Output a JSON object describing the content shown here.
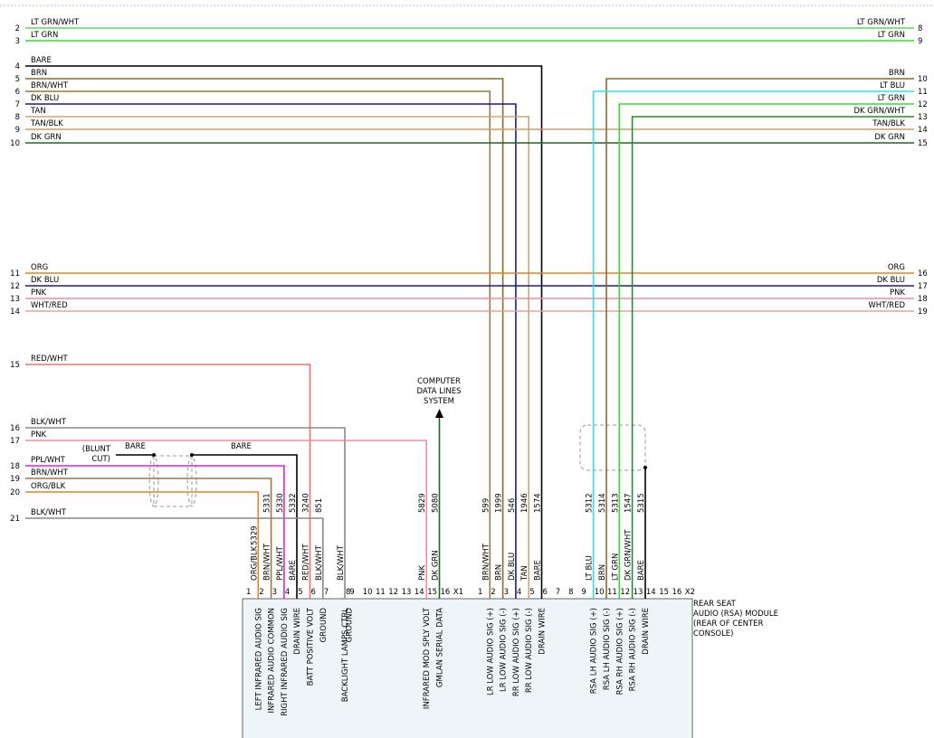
{
  "left_pins": [
    {
      "pin": "2",
      "color": "LT GRN/WHT",
      "stroke": "#66d066"
    },
    {
      "pin": "3",
      "color": "LT GRN",
      "stroke": "#33dd33"
    },
    {
      "pin": "4",
      "color": "BARE",
      "stroke": "#000000"
    },
    {
      "pin": "5",
      "color": "BRN",
      "stroke": "#8b6a2b"
    },
    {
      "pin": "6",
      "color": "BRN/WHT",
      "stroke": "#9a7a40"
    },
    {
      "pin": "7",
      "color": "DK BLU",
      "stroke": "#1a1a8c"
    },
    {
      "pin": "8",
      "color": "TAN",
      "stroke": "#c8a878"
    },
    {
      "pin": "9",
      "color": "TAN/BLK",
      "stroke": "#c0a070"
    },
    {
      "pin": "10",
      "color": "DK GRN",
      "stroke": "#1a6b1a"
    },
    {
      "pin": "11",
      "color": "ORG",
      "stroke": "#e8821e"
    },
    {
      "pin": "12",
      "color": "DK BLU",
      "stroke": "#1a1a8c"
    },
    {
      "pin": "13",
      "color": "PNK",
      "stroke": "#f08ca0"
    },
    {
      "pin": "14",
      "color": "WHT/RED",
      "stroke": "#e8a090"
    },
    {
      "pin": "15",
      "color": "RED/WHT",
      "stroke": "#f07070"
    },
    {
      "pin": "16",
      "color": "BLK/WHT",
      "stroke": "#888888"
    },
    {
      "pin": "17",
      "color": "PNK",
      "stroke": "#f08ca0"
    },
    {
      "pin": "18",
      "color": "PPL/WHT",
      "stroke": "#e020e0"
    },
    {
      "pin": "19",
      "color": "BRN/WHT",
      "stroke": "#9a7a40"
    },
    {
      "pin": "20",
      "color": "ORG/BLK",
      "stroke": "#e8821e"
    },
    {
      "pin": "21",
      "color": "BLK/WHT",
      "stroke": "#888888"
    }
  ],
  "right_pins": [
    {
      "pin": "8",
      "color": "LT GRN/WHT"
    },
    {
      "pin": "9",
      "color": "LT GRN"
    },
    {
      "pin": "10",
      "color": "BRN",
      "stroke": "#8b6a2b"
    },
    {
      "pin": "11",
      "color": "LT BLU",
      "stroke": "#33e0e0"
    },
    {
      "pin": "12",
      "color": "LT GRN",
      "stroke": "#33dd33"
    },
    {
      "pin": "13",
      "color": "DK GRN/WHT",
      "stroke": "#2a8a2a"
    },
    {
      "pin": "14",
      "color": "TAN/BLK"
    },
    {
      "pin": "15",
      "color": "DK GRN"
    },
    {
      "pin": "16",
      "color": "ORG"
    },
    {
      "pin": "17",
      "color": "DK BLU"
    },
    {
      "pin": "18",
      "color": "PNK"
    },
    {
      "pin": "19",
      "color": "WHT/RED"
    }
  ],
  "splice": {
    "note": [
      "(BLUNT",
      "CUT)"
    ],
    "left_label": "BARE",
    "right_label": "BARE"
  },
  "data_lines": [
    "COMPUTER",
    "DATA LINES",
    "SYSTEM"
  ],
  "module": {
    "name": [
      "REAR SEAT",
      "AUDIO (RSA) MODULE",
      "(REAR OF CENTER",
      "CONSOLE)"
    ],
    "connector_1": [
      {
        "pin": "1"
      },
      {
        "pin": "2",
        "color": "ORG/BLK",
        "circuit": "5329",
        "function": "LEFT INFRARED AUDIO SIG"
      },
      {
        "pin": "3",
        "color": "BRN/WHT",
        "circuit": "5331",
        "function": "INFRARED AUDIO COMMON"
      },
      {
        "pin": "4",
        "color": "PPL/WHT",
        "circuit": "5330",
        "function": "RIGHT INFRARED AUDIO SIG"
      },
      {
        "pin": "5",
        "color": "BARE",
        "circuit": "5332",
        "function": "DRAIN WIRE"
      },
      {
        "pin": "6",
        "color": "RED/WHT",
        "circuit": "3240",
        "function": "BATT POSITIVE VOLT"
      },
      {
        "pin": "7",
        "color": "BLK/WHT",
        "circuit": "851",
        "function": "GROUND"
      },
      {
        "pin": "8",
        "color": "BLK/WHT",
        "function": "BACKLIGHT LAMPS CTRL"
      },
      {
        "pin": "9",
        "function": "GROUND"
      },
      {
        "pin": "10"
      },
      {
        "pin": "11"
      },
      {
        "pin": "12"
      },
      {
        "pin": "13"
      },
      {
        "pin": "14"
      },
      {
        "pin": "15",
        "color": "PNK",
        "circuit": "5829",
        "function": "INFRARED MOD SPLY VOLT"
      },
      {
        "pin": "16",
        "color": "DK GRN",
        "circuit": "5080",
        "function": "GMLAN SERIAL DATA"
      },
      {
        "pin": "X1"
      }
    ],
    "connector_2": [
      {
        "pin": "1"
      },
      {
        "pin": "2",
        "color": "BRN/WHT",
        "circuit": "599",
        "function": "LR LOW AUDIO SIG (+)"
      },
      {
        "pin": "3",
        "color": "BRN",
        "circuit": "1999",
        "function": "LR LOW AUDIO SIG (-)"
      },
      {
        "pin": "4",
        "color": "DK BLU",
        "circuit": "546",
        "function": "RR LOW AUDIO SIG (+)"
      },
      {
        "pin": "5",
        "color": "TAN",
        "circuit": "1946",
        "function": "RR LOW AUDIO SIG (-)"
      },
      {
        "pin": "6",
        "color": "BARE",
        "circuit": "1574",
        "function": "DRAIN WIRE"
      },
      {
        "pin": "7"
      },
      {
        "pin": "8"
      },
      {
        "pin": "9"
      },
      {
        "pin": "10",
        "color": "LT BLU",
        "circuit": "5312",
        "function": "RSA LH AUDIO SIG (+)"
      },
      {
        "pin": "11",
        "color": "BRN",
        "circuit": "5314",
        "function": "RSA LH AUDIO SIG (-)"
      },
      {
        "pin": "12",
        "color": "LT GRN",
        "circuit": "5313",
        "function": "RSA RH AUDIO SIG (+)"
      },
      {
        "pin": "13",
        "color": "DK GRN/WHT",
        "circuit": "1547",
        "function": "RSA RH AUDIO SIG (-)"
      },
      {
        "pin": "14",
        "color": "BARE",
        "circuit": "5315",
        "function": "DRAIN WIRE"
      },
      {
        "pin": "15"
      },
      {
        "pin": "16"
      },
      {
        "pin": "X2"
      }
    ]
  }
}
